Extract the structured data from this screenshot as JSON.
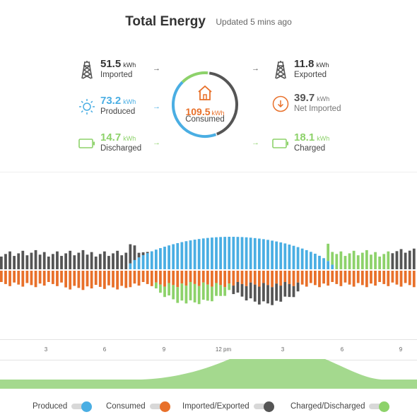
{
  "header": {
    "title": "Total Energy",
    "updated": "Updated 5 mins ago"
  },
  "colors": {
    "produced": "#4aaee3",
    "consumed": "#e8702a",
    "imported_exported": "#555555",
    "charged_discharged": "#8dd26a",
    "overview_fill": "#a4d98e"
  },
  "flows": {
    "imported": {
      "value": "51.5",
      "unit": "kWh",
      "label": "Imported",
      "icon": "transmission-tower-icon"
    },
    "produced": {
      "value": "73.2",
      "unit": "kWh",
      "label": "Produced",
      "icon": "sun-icon"
    },
    "discharged": {
      "value": "14.7",
      "unit": "kWh",
      "label": "Discharged",
      "icon": "battery-icon"
    },
    "consumed": {
      "value": "109.5",
      "unit": "kWh",
      "label": "Consumed",
      "icon": "house-icon"
    },
    "exported": {
      "value": "11.8",
      "unit": "kWh",
      "label": "Exported",
      "icon": "transmission-tower-icon"
    },
    "net_imported": {
      "value": "39.7",
      "unit": "kWh",
      "label": "Net Imported",
      "icon": "down-arrow-circle-icon"
    },
    "charged": {
      "value": "18.1",
      "unit": "kWh",
      "label": "Charged",
      "icon": "battery-icon"
    }
  },
  "arrows": {
    "right": "→"
  },
  "time_axis": {
    "ticks": [
      "3",
      "6",
      "9",
      "12 pm",
      "3",
      "6",
      "9"
    ]
  },
  "legend": [
    {
      "label": "Produced",
      "color": "#4aaee3"
    },
    {
      "label": "Consumed",
      "color": "#e8702a"
    },
    {
      "label": "Imported/Exported",
      "color": "#555555"
    },
    {
      "label": "Charged/Discharged",
      "color": "#8dd26a"
    }
  ],
  "chart_data": {
    "type": "bar",
    "series": [
      {
        "name": "Produced"
      },
      {
        "name": "Consumed"
      },
      {
        "name": "Imported/Exported"
      },
      {
        "name": "Charged/Discharged"
      }
    ],
    "x_ticks": [
      "3",
      "6",
      "9",
      "12 pm",
      "3",
      "6",
      "9"
    ],
    "bar_count": 97
  }
}
